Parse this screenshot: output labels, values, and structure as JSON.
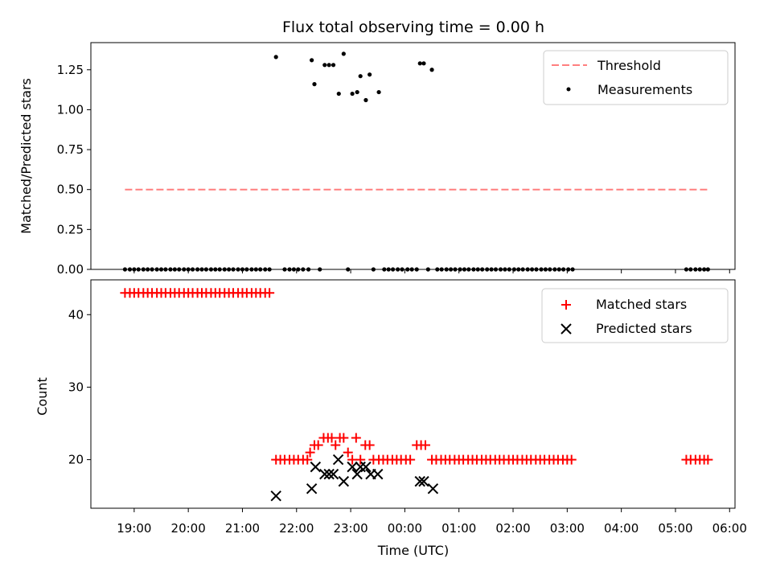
{
  "chart_data": [
    {
      "type": "scatter",
      "title": "Flux total observing time = 0.00 h",
      "ylabel": "Matched/Predicted stars",
      "xlabel": "",
      "ylim": [
        0,
        1.42
      ],
      "xlim_hours": [
        18.2,
        30.1
      ],
      "yticks": [
        0.0,
        0.25,
        0.5,
        0.75,
        1.0,
        1.25
      ],
      "ytick_labels": [
        "0.00",
        "0.25",
        "0.50",
        "0.75",
        "1.00",
        "1.25"
      ],
      "legend": {
        "position": "upper right",
        "entries": [
          "Threshold",
          "Measurements"
        ]
      },
      "series": [
        {
          "name": "Threshold",
          "kind": "dashed-line",
          "color": "#ff7f7f",
          "x": [
            18.83,
            29.6
          ],
          "y": [
            0.5,
            0.5
          ]
        },
        {
          "name": "Measurements",
          "kind": "dot",
          "color": "#000000",
          "x": [
            18.83,
            18.92,
            19.0,
            19.08,
            19.17,
            19.25,
            19.33,
            19.42,
            19.5,
            19.58,
            19.67,
            19.75,
            19.83,
            19.92,
            20.0,
            20.08,
            20.17,
            20.25,
            20.33,
            20.42,
            20.5,
            20.58,
            20.67,
            20.75,
            20.83,
            20.92,
            21.0,
            21.08,
            21.17,
            21.25,
            21.33,
            21.42,
            21.5,
            21.62,
            21.78,
            21.87,
            21.95,
            22.03,
            22.12,
            22.22,
            22.28,
            22.33,
            22.43,
            22.52,
            22.6,
            22.68,
            22.78,
            22.87,
            22.95,
            23.03,
            23.12,
            23.18,
            23.28,
            23.35,
            23.42,
            23.52,
            23.62,
            23.7,
            23.78,
            23.87,
            23.95,
            24.05,
            24.13,
            24.22,
            24.28,
            24.35,
            24.43,
            24.5,
            24.6,
            24.68,
            24.77,
            24.85,
            24.93,
            25.02,
            25.1,
            25.18,
            25.27,
            25.35,
            25.43,
            25.52,
            25.6,
            25.68,
            25.77,
            25.85,
            25.93,
            26.02,
            26.1,
            26.18,
            26.27,
            26.35,
            26.43,
            26.52,
            26.6,
            26.68,
            26.77,
            26.85,
            26.93,
            27.02,
            27.1,
            29.2,
            29.28,
            29.37,
            29.45,
            29.53,
            29.6
          ],
          "y": [
            0,
            0,
            0,
            0,
            0,
            0,
            0,
            0,
            0,
            0,
            0,
            0,
            0,
            0,
            0,
            0,
            0,
            0,
            0,
            0,
            0,
            0,
            0,
            0,
            0,
            0,
            0,
            0,
            0,
            0,
            0,
            0,
            0,
            1.33,
            0,
            0,
            0,
            0,
            0,
            0,
            1.31,
            1.16,
            0,
            1.28,
            1.28,
            1.28,
            1.1,
            1.35,
            0,
            1.1,
            1.11,
            1.21,
            1.06,
            1.22,
            0,
            1.11,
            0,
            0,
            0,
            0,
            0,
            0,
            0,
            0,
            1.29,
            1.29,
            0,
            1.25,
            0,
            0,
            0,
            0,
            0,
            0,
            0,
            0,
            0,
            0,
            0,
            0,
            0,
            0,
            0,
            0,
            0,
            0,
            0,
            0,
            0,
            0,
            0,
            0,
            0,
            0,
            0,
            0,
            0,
            0,
            0,
            0,
            0,
            0,
            0,
            0,
            0
          ]
        }
      ]
    },
    {
      "type": "scatter",
      "title": "",
      "ylabel": "Count",
      "xlabel": "Time (UTC)",
      "ylim": [
        13.3,
        44.8
      ],
      "xlim_hours": [
        18.2,
        30.1
      ],
      "yticks": [
        20,
        30,
        40
      ],
      "ytick_labels": [
        "20",
        "30",
        "40"
      ],
      "xticks_hours": [
        19,
        20,
        21,
        22,
        23,
        24,
        25,
        26,
        27,
        28,
        29,
        30
      ],
      "xtick_labels": [
        "19:00",
        "20:00",
        "21:00",
        "22:00",
        "23:00",
        "00:00",
        "01:00",
        "02:00",
        "03:00",
        "04:00",
        "05:00",
        "06:00"
      ],
      "legend": {
        "position": "upper right",
        "entries": [
          "Matched stars",
          "Predicted stars"
        ]
      },
      "series": [
        {
          "name": "Matched stars",
          "kind": "plus",
          "color": "#ff0000",
          "x": [
            18.83,
            18.92,
            19.0,
            19.08,
            19.17,
            19.25,
            19.33,
            19.42,
            19.5,
            19.58,
            19.67,
            19.75,
            19.83,
            19.92,
            20.0,
            20.08,
            20.17,
            20.25,
            20.33,
            20.42,
            20.5,
            20.58,
            20.67,
            20.75,
            20.83,
            20.92,
            21.0,
            21.08,
            21.17,
            21.25,
            21.33,
            21.42,
            21.5,
            21.62,
            21.7,
            21.78,
            21.87,
            21.95,
            22.03,
            22.12,
            22.2,
            22.25,
            22.33,
            22.4,
            22.5,
            22.58,
            22.65,
            22.72,
            22.8,
            22.87,
            22.95,
            23.03,
            23.1,
            23.18,
            23.27,
            23.35,
            23.42,
            23.52,
            23.6,
            23.68,
            23.77,
            23.85,
            23.93,
            24.02,
            24.1,
            24.22,
            24.3,
            24.38,
            24.5,
            24.58,
            24.67,
            24.75,
            24.83,
            24.92,
            25.0,
            25.08,
            25.17,
            25.25,
            25.33,
            25.42,
            25.5,
            25.58,
            25.67,
            25.75,
            25.83,
            25.92,
            26.0,
            26.08,
            26.17,
            26.25,
            26.33,
            26.42,
            26.5,
            26.58,
            26.67,
            26.75,
            26.83,
            26.92,
            27.0,
            27.08,
            29.2,
            29.28,
            29.37,
            29.45,
            29.53,
            29.6
          ],
          "y": [
            43,
            43,
            43,
            43,
            43,
            43,
            43,
            43,
            43,
            43,
            43,
            43,
            43,
            43,
            43,
            43,
            43,
            43,
            43,
            43,
            43,
            43,
            43,
            43,
            43,
            43,
            43,
            43,
            43,
            43,
            43,
            43,
            43,
            20,
            20,
            20,
            20,
            20,
            20,
            20,
            20,
            21,
            22,
            22,
            23,
            23,
            23,
            22,
            23,
            23,
            21,
            20,
            23,
            20,
            22,
            22,
            20,
            20,
            20,
            20,
            20,
            20,
            20,
            20,
            20,
            22,
            22,
            22,
            20,
            20,
            20,
            20,
            20,
            20,
            20,
            20,
            20,
            20,
            20,
            20,
            20,
            20,
            20,
            20,
            20,
            20,
            20,
            20,
            20,
            20,
            20,
            20,
            20,
            20,
            20,
            20,
            20,
            20,
            20,
            20,
            20,
            20,
            20,
            20,
            20,
            20
          ]
        },
        {
          "name": "Predicted stars",
          "kind": "x",
          "color": "#000000",
          "x": [
            21.62,
            22.28,
            22.35,
            22.52,
            22.6,
            22.68,
            22.77,
            22.87,
            23.03,
            23.12,
            23.18,
            23.28,
            23.37,
            23.5,
            24.28,
            24.35,
            24.52
          ],
          "y": [
            15,
            16,
            19,
            18,
            18,
            18,
            20,
            17,
            19,
            18,
            19,
            19,
            18,
            18,
            17,
            17,
            16
          ]
        }
      ]
    }
  ]
}
